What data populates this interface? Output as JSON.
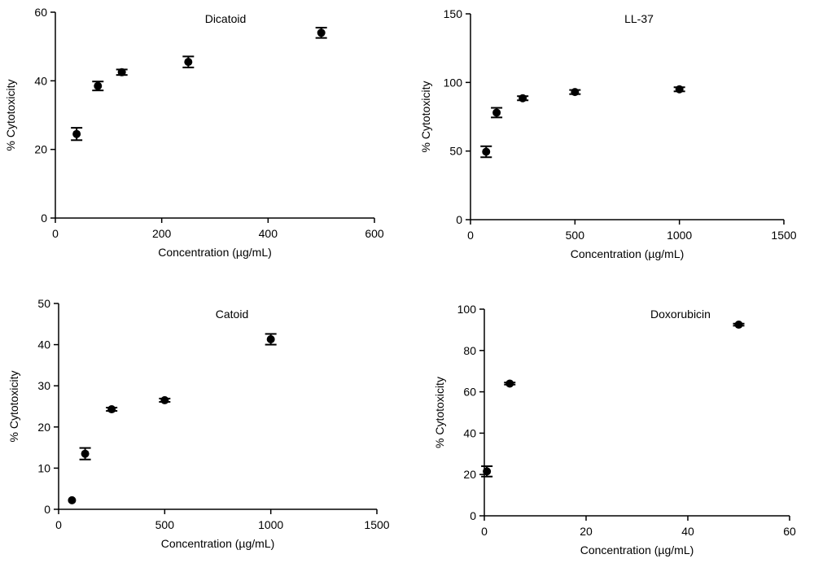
{
  "chart_data": [
    {
      "type": "scatter",
      "title": "Dicatoid",
      "xlabel": "Concentration (µg/mL)",
      "ylabel": "% Cytotoxicity",
      "xlim": [
        0,
        600
      ],
      "ylim": [
        0,
        60
      ],
      "xticks": [
        "0",
        "200",
        "400",
        "600"
      ],
      "yticks": [
        "0",
        "20",
        "40",
        "60"
      ],
      "grid": false,
      "points": [
        {
          "x": 40,
          "y": 24.5,
          "err": 1.8
        },
        {
          "x": 80,
          "y": 38.5,
          "err": 1.3
        },
        {
          "x": 125,
          "y": 42.5,
          "err": 0.8
        },
        {
          "x": 250,
          "y": 45.5,
          "err": 1.6
        },
        {
          "x": 500,
          "y": 54,
          "err": 1.5
        }
      ]
    },
    {
      "type": "scatter",
      "title": "LL-37",
      "xlabel": "Concentration (µg/mL)",
      "ylabel": "% Cytotoxicity",
      "xlim": [
        0,
        1500
      ],
      "ylim": [
        0,
        150
      ],
      "xticks": [
        "0",
        "500",
        "1000",
        "1500"
      ],
      "yticks": [
        "0",
        "50",
        "100",
        "150"
      ],
      "grid": false,
      "points": [
        {
          "x": 75,
          "y": 49.5,
          "err": 4
        },
        {
          "x": 125,
          "y": 78,
          "err": 3.5
        },
        {
          "x": 250,
          "y": 88.5,
          "err": 1.5
        },
        {
          "x": 500,
          "y": 93,
          "err": 1.5
        },
        {
          "x": 1000,
          "y": 95,
          "err": 1.5
        }
      ]
    },
    {
      "type": "scatter",
      "title": "Catoid",
      "xlabel": "Concentration (µg/mL)",
      "ylabel": "% Cytotoxicity",
      "xlim": [
        0,
        1500
      ],
      "ylim": [
        0,
        50
      ],
      "xticks": [
        "0",
        "500",
        "1000",
        "1500"
      ],
      "yticks": [
        "0",
        "10",
        "20",
        "30",
        "40",
        "50"
      ],
      "grid": false,
      "points": [
        {
          "x": 63,
          "y": 2.2,
          "err": 0
        },
        {
          "x": 125,
          "y": 13.5,
          "err": 1.4
        },
        {
          "x": 250,
          "y": 24.3,
          "err": 0.4
        },
        {
          "x": 500,
          "y": 26.5,
          "err": 0.4
        },
        {
          "x": 1000,
          "y": 41.3,
          "err": 1.3
        }
      ]
    },
    {
      "type": "scatter",
      "title": "Doxorubicin",
      "xlabel": "Concentration (µg/mL)",
      "ylabel": "% Cytotoxicity",
      "xlim": [
        0,
        60
      ],
      "ylim": [
        0,
        100
      ],
      "xticks": [
        "0",
        "20",
        "40",
        "60"
      ],
      "yticks": [
        "0",
        "20",
        "40",
        "60",
        "80",
        "100"
      ],
      "grid": false,
      "points": [
        {
          "x": 0.5,
          "y": 21.5,
          "err": 2.5
        },
        {
          "x": 5,
          "y": 64,
          "err": 0.5
        },
        {
          "x": 50,
          "y": 92.5,
          "err": 0.5
        }
      ]
    }
  ]
}
